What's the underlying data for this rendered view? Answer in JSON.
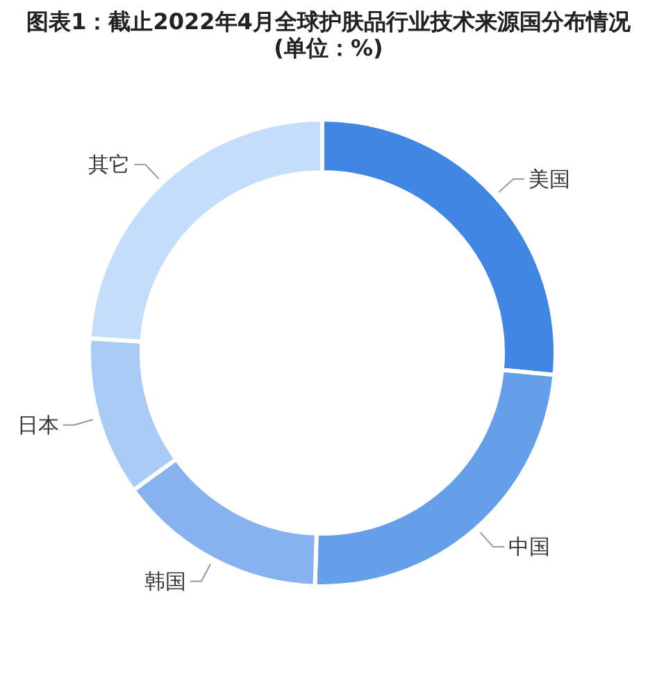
{
  "chart_data": {
    "type": "donut",
    "title": "图表1：截止2022年4月全球护肤品行业技术来源国分布情况(单位：%)",
    "categories": [
      "美国",
      "中国",
      "韩国",
      "日本",
      "其它"
    ],
    "values": [
      26.5,
      24,
      14.5,
      11,
      24
    ],
    "colors": [
      "#4286e3",
      "#659fe9",
      "#86b2ef",
      "#a9cbf6",
      "#c4ddfb"
    ]
  }
}
